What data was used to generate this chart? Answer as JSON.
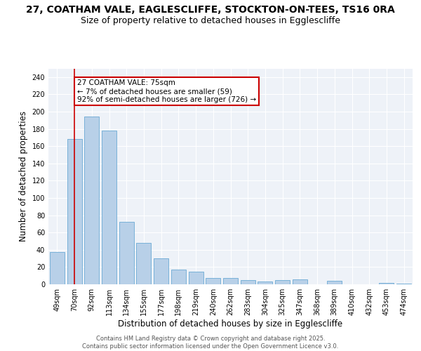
{
  "title_line1": "27, COATHAM VALE, EAGLESCLIFFE, STOCKTON-ON-TEES, TS16 0RA",
  "title_line2": "Size of property relative to detached houses in Egglescliffe",
  "xlabel": "Distribution of detached houses by size in Egglescliffe",
  "ylabel": "Number of detached properties",
  "categories": [
    "49sqm",
    "70sqm",
    "92sqm",
    "113sqm",
    "134sqm",
    "155sqm",
    "177sqm",
    "198sqm",
    "219sqm",
    "240sqm",
    "262sqm",
    "283sqm",
    "304sqm",
    "325sqm",
    "347sqm",
    "368sqm",
    "389sqm",
    "410sqm",
    "432sqm",
    "453sqm",
    "474sqm"
  ],
  "values": [
    37,
    168,
    194,
    178,
    72,
    48,
    30,
    17,
    15,
    7,
    7,
    5,
    3,
    5,
    6,
    0,
    4,
    0,
    0,
    2,
    1
  ],
  "bar_color": "#b8d0e8",
  "bar_edge_color": "#6aaad4",
  "vline_x": 1,
  "vline_color": "#cc0000",
  "annotation_text": "27 COATHAM VALE: 75sqm\n← 7% of detached houses are smaller (59)\n92% of semi-detached houses are larger (726) →",
  "annotation_box_facecolor": "#ffffff",
  "annotation_box_edgecolor": "#cc0000",
  "ylim": [
    0,
    250
  ],
  "yticks": [
    0,
    20,
    40,
    60,
    80,
    100,
    120,
    140,
    160,
    180,
    200,
    220,
    240
  ],
  "bg_color": "#eef2f8",
  "footer_text": "Contains HM Land Registry data © Crown copyright and database right 2025.\nContains public sector information licensed under the Open Government Licence v3.0.",
  "title_fontsize": 10,
  "subtitle_fontsize": 9,
  "tick_fontsize": 7,
  "label_fontsize": 8.5,
  "footer_fontsize": 6,
  "annotation_fontsize": 7.5
}
